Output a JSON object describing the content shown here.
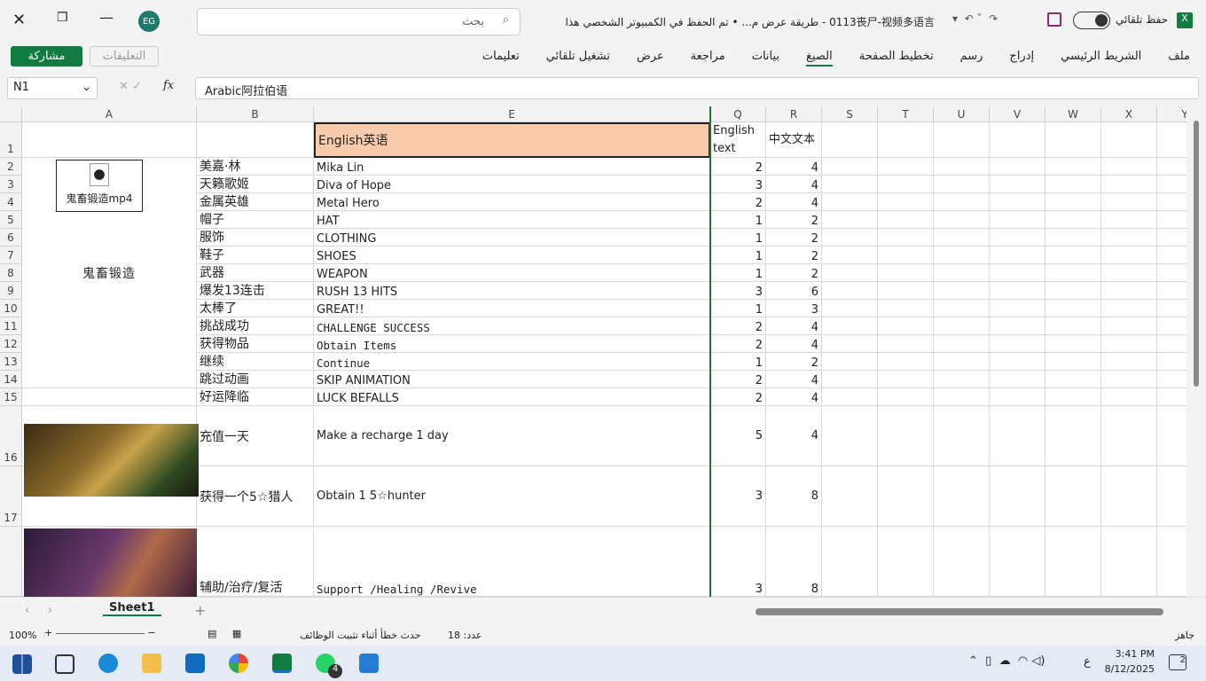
{
  "title_bar": {
    "autosave": "حفظ تلقائي",
    "doc_title": "0113丧尸-视频多语言  -  طريقة عرض م...  •  تم الحفظ في الكمبيوتر الشخصي هذا",
    "search": "بحث",
    "user_initials": "EG"
  },
  "ribbon": {
    "tabs": [
      "ملف",
      "الشريط الرئيسي",
      "إدراج",
      "رسم",
      "تخطيط الصفحة",
      "الصيغ",
      "بيانات",
      "مراجعة",
      "عرض",
      "تشغيل تلقائي",
      "تعليمات"
    ],
    "comments": "التعليقات",
    "share": "مشاركة"
  },
  "formula_bar": {
    "name_box": "N1",
    "fx": "fx",
    "content": "Arabic阿拉伯语"
  },
  "sheet": {
    "columns": [
      "A",
      "B",
      "E",
      "Q",
      "R",
      "S",
      "T",
      "U",
      "V",
      "W",
      "X",
      "Y"
    ],
    "file_label": "鬼畜锻造mp4",
    "merged_a": "鬼畜锻造",
    "rows": [
      {
        "n": "1",
        "e": "English英语",
        "q": "English text",
        "r": "中文文本"
      },
      {
        "n": "2",
        "b": "美嘉·林",
        "e": "Mika Lin",
        "q": 2,
        "r": 4
      },
      {
        "n": "3",
        "b": "天籁歌姬",
        "e": "Diva of Hope",
        "q": 3,
        "r": 4
      },
      {
        "n": "4",
        "b": "金属英雄",
        "e": "Metal Hero",
        "q": 2,
        "r": 4
      },
      {
        "n": "5",
        "b": "帽子",
        "e": "HAT",
        "q": 1,
        "r": 2
      },
      {
        "n": "6",
        "b": "服饰",
        "e": "CLOTHING",
        "q": 1,
        "r": 2
      },
      {
        "n": "7",
        "b": "鞋子",
        "e": "SHOES",
        "q": 1,
        "r": 2
      },
      {
        "n": "8",
        "b": "武器",
        "e": "WEAPON",
        "q": 1,
        "r": 2
      },
      {
        "n": "9",
        "b": "爆发13连击",
        "e": "RUSH 13 HITS",
        "q": 3,
        "r": 6
      },
      {
        "n": "10",
        "b": "太棒了",
        "e": "GREAT!!",
        "q": 1,
        "r": 3
      },
      {
        "n": "11",
        "b": "挑战成功",
        "e": "CHALLENGE SUCCESS",
        "q": 2,
        "r": 4
      },
      {
        "n": "12",
        "b": "获得物品",
        "e": "Obtain Items",
        "q": 2,
        "r": 4
      },
      {
        "n": "13",
        "b": "继续",
        "e": "Continue",
        "q": 1,
        "r": 2
      },
      {
        "n": "14",
        "b": "跳过动画",
        "e": "SKIP ANIMATION",
        "q": 2,
        "r": 4
      },
      {
        "n": "15",
        "b": "好运降临",
        "e": "LUCK BEFALLS",
        "q": 2,
        "r": 4
      },
      {
        "n": "16",
        "b": "充值一天",
        "e": "Make a recharge 1 day",
        "q": 5,
        "r": 4
      },
      {
        "n": "17",
        "b": "获得一个5☆猎人",
        "e": "Obtain 1 5☆hunter",
        "q": 3,
        "r": 8
      },
      {
        "b": "辅助/治疗/复活",
        "e": "Support /Healing /Revive",
        "q": 3,
        "r": 8
      }
    ],
    "sheet_tab": "Sheet1"
  },
  "status_bar": {
    "ready": "جاهز",
    "count": "عدد: 18",
    "error": "حدث خطأ أثناء تثبيت الوظائف",
    "zoom": "100%"
  },
  "taskbar": {
    "time": "3:41 PM",
    "date": "8/12/2025",
    "lang": "ع",
    "whatsapp_badge": "4",
    "notifications": "2"
  }
}
